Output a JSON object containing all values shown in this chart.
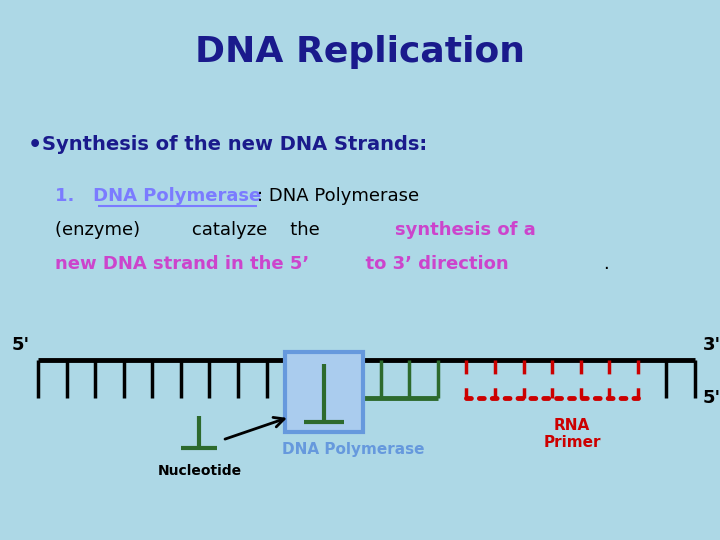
{
  "background_color": "#add8e6",
  "title": "DNA Replication",
  "title_color": "#1a1a8c",
  "title_fontsize": 26,
  "bullet_text": "Synthesis of the new DNA Strands:",
  "bullet_color": "#1a1a8c",
  "bullet_fontsize": 14,
  "body_fontsize": 13,
  "purple_color": "#7b7bff",
  "magenta_color": "#cc44cc",
  "green_color": "#2d6a2d",
  "red_color": "#cc0000",
  "blue_box_edge": "#6699dd",
  "blue_box_face": "#aaccee",
  "label_nucleotide": "Nucleotide",
  "label_polymerase": "DNA Polymerase",
  "label_rna": "RNA\nPrimer",
  "label_5prime_left": "5'",
  "label_3prime_right": "3'",
  "label_5prime_right": "5'"
}
